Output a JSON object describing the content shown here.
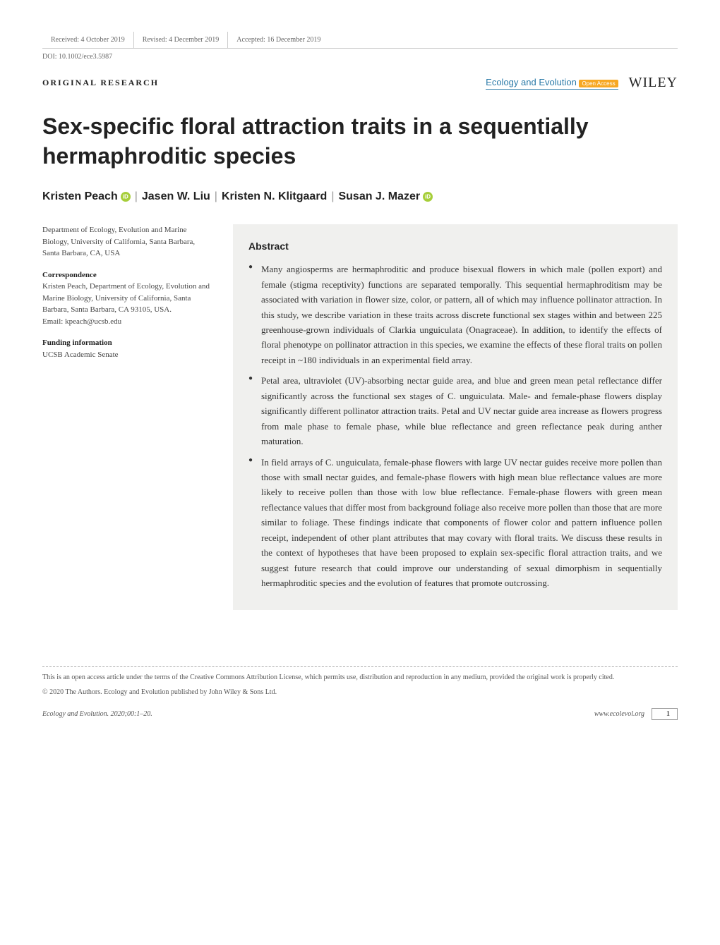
{
  "meta": {
    "received": "Received: 4 October 2019",
    "revised": "Revised: 4 December 2019",
    "accepted": "Accepted: 16 December 2019",
    "doi": "DOI: 10.1002/ece3.5987"
  },
  "article_type": "ORIGINAL RESEARCH",
  "journal": {
    "name": "Ecology and Evolution",
    "open_access": "Open Access",
    "publisher": "WILEY"
  },
  "title": "Sex-specific floral attraction traits in a sequentially hermaphroditic species",
  "authors": {
    "list": [
      {
        "name": "Kristen Peach",
        "orcid": true
      },
      {
        "name": "Jasen W. Liu",
        "orcid": false
      },
      {
        "name": "Kristen N. Klitgaard",
        "orcid": false
      },
      {
        "name": "Susan J. Mazer",
        "orcid": true
      }
    ]
  },
  "affiliation": "Department of Ecology, Evolution and Marine Biology, University of California, Santa Barbara, Santa Barbara, CA, USA",
  "correspondence": {
    "label": "Correspondence",
    "text": "Kristen Peach, Department of Ecology, Evolution and Marine Biology, University of California, Santa Barbara, Santa Barbara, CA 93105, USA.",
    "email": "Email: kpeach@ucsb.edu"
  },
  "funding": {
    "label": "Funding information",
    "text": "UCSB Academic Senate"
  },
  "abstract": {
    "heading": "Abstract",
    "bullets": [
      "Many angiosperms are hermaphroditic and produce bisexual flowers in which male (pollen export) and female (stigma receptivity) functions are separated temporally. This sequential hermaphroditism may be associated with variation in flower size, color, or pattern, all of which may influence pollinator attraction. In this study, we describe variation in these traits across discrete functional sex stages within and between 225 greenhouse-grown individuals of Clarkia unguiculata (Onagraceae). In addition, to identify the effects of floral phenotype on pollinator attraction in this species, we examine the effects of these floral traits on pollen receipt in ~180 individuals in an experimental field array.",
      "Petal area, ultraviolet (UV)-absorbing nectar guide area, and blue and green mean petal reflectance differ significantly across the functional sex stages of C. unguiculata. Male- and female-phase flowers display significantly different pollinator attraction traits. Petal and UV nectar guide area increase as flowers progress from male phase to female phase, while blue reflectance and green reflectance peak during anther maturation.",
      "In field arrays of C. unguiculata, female-phase flowers with large UV nectar guides receive more pollen than those with small nectar guides, and female-phase flowers with high mean blue reflectance values are more likely to receive pollen than those with low blue reflectance. Female-phase flowers with green mean reflectance values that differ most from background foliage also receive more pollen than those that are more similar to foliage. These findings indicate that components of flower color and pattern influence pollen receipt, independent of other plant attributes that may covary with floral traits. We discuss these results in the context of hypotheses that have been proposed to explain sex-specific floral attraction traits, and we suggest future research that could improve our understanding of sexual dimorphism in sequentially hermaphroditic species and the evolution of features that promote outcrossing."
    ]
  },
  "license": "This is an open access article under the terms of the Creative Commons Attribution License, which permits use, distribution and reproduction in any medium, provided the original work is properly cited.",
  "copyright": "© 2020 The Authors. Ecology and Evolution published by John Wiley & Sons Ltd.",
  "footer": {
    "citation": "Ecology and Evolution. 2020;00:1–20.",
    "url": "www.ecolevol.org",
    "page": "1"
  }
}
